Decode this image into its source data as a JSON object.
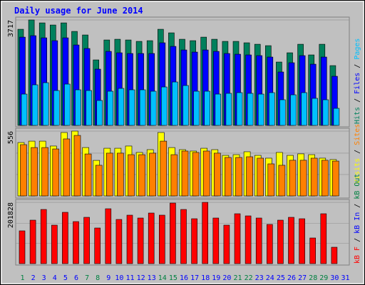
{
  "title": "Daily usage for June 2014",
  "legend_separator": " / ",
  "categories": [
    "1",
    "2",
    "3",
    "4",
    "5",
    "6",
    "7",
    "8",
    "9",
    "10",
    "11",
    "12",
    "13",
    "14",
    "15",
    "16",
    "17",
    "18",
    "19",
    "20",
    "21",
    "22",
    "23",
    "24",
    "25",
    "26",
    "27",
    "28",
    "29",
    "30",
    "31"
  ],
  "category_colors": [
    "#008040",
    "#0000ff",
    "#0000ff",
    "#0000ff",
    "#0000ff",
    "#0000ff",
    "#008040",
    "#008040",
    "#0000ff",
    "#0000ff",
    "#0000ff",
    "#0000ff",
    "#0000ff",
    "#008040",
    "#008040",
    "#0000ff",
    "#0000ff",
    "#0000ff",
    "#0000ff",
    "#0000ff",
    "#008040",
    "#008040",
    "#0000ff",
    "#0000ff",
    "#0000ff",
    "#0000ff",
    "#0000ff",
    "#008040",
    "#008040",
    "#0000ff",
    "#0000ff"
  ],
  "chart_data": [
    {
      "type": "bar",
      "ylim": [
        0,
        3717
      ],
      "yticks": [
        3717
      ],
      "series": [
        {
          "name": "Hits",
          "color": "#00805c",
          "values": [
            3389,
            3717,
            3614,
            3539,
            3614,
            3313,
            3188,
            2309,
            3012,
            3037,
            3012,
            2962,
            2987,
            3389,
            3263,
            3037,
            2987,
            3112,
            3037,
            2962,
            2962,
            2912,
            2861,
            2811,
            2234,
            2560,
            2861,
            2485,
            2861,
            2108
          ]
        },
        {
          "name": "Files",
          "color": "#0000ff",
          "values": [
            3112,
            3163,
            3087,
            2987,
            3087,
            2836,
            2711,
            1983,
            2610,
            2560,
            2535,
            2535,
            2535,
            2912,
            2786,
            2660,
            2585,
            2660,
            2610,
            2535,
            2510,
            2485,
            2460,
            2410,
            1883,
            2209,
            2460,
            2158,
            2410,
            1732
          ]
        },
        {
          "name": "Pages",
          "color": "#00c0ff",
          "values": [
            1104,
            1431,
            1506,
            1230,
            1456,
            1255,
            1230,
            879,
            1205,
            1305,
            1255,
            1255,
            1205,
            1355,
            1531,
            1406,
            1205,
            1205,
            1104,
            1130,
            1155,
            1130,
            1104,
            1155,
            904,
            1079,
            1155,
            954,
            904,
            602
          ]
        }
      ]
    },
    {
      "type": "bar",
      "ylim": [
        0,
        556
      ],
      "yticks": [
        556
      ],
      "series": [
        {
          "name": "Visits",
          "color": "#ffff00",
          "values": [
            458,
            470,
            470,
            428,
            544,
            556,
            415,
            305,
            409,
            409,
            428,
            373,
            397,
            544,
            415,
            397,
            385,
            409,
            397,
            348,
            354,
            379,
            348,
            324,
            373,
            348,
            361,
            354,
            324,
            312
          ]
        },
        {
          "name": "Sites",
          "color": "#ff8000",
          "values": [
            440,
            415,
            415,
            403,
            489,
            519,
            360,
            263,
            367,
            367,
            354,
            354,
            367,
            470,
            354,
            385,
            373,
            385,
            367,
            330,
            330,
            336,
            324,
            275,
            263,
            306,
            306,
            324,
            306,
            299
          ]
        }
      ]
    },
    {
      "type": "bar",
      "ylim": [
        0,
        201828
      ],
      "yticks": [
        201828
      ],
      "series": [
        {
          "name": "kB F",
          "color": "#ff0000",
          "values": [
            107962,
            143167,
            178372,
            126738,
            168984,
            138473,
            152555,
            117350,
            180719,
            145514,
            159596,
            150208,
            166637,
            159596,
            199495,
            178372,
            147861,
            201828,
            150208,
            126738,
            164290,
            157249,
            150208,
            129085,
            143167,
            152555,
            147861,
            84492,
            164290,
            53981
          ]
        }
      ],
      "legend_extra": [
        {
          "name": "kB In",
          "color": "#0000ff"
        },
        {
          "name": "kB Out",
          "color": "#008040"
        }
      ]
    }
  ]
}
